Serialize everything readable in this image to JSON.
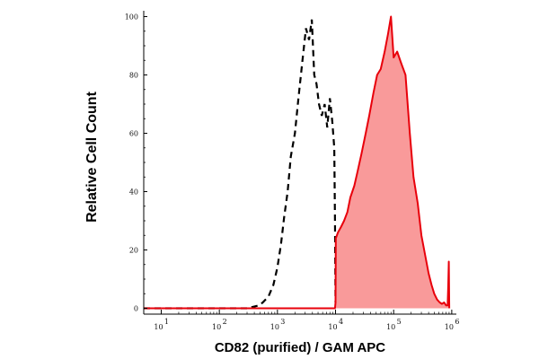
{
  "chart_data": {
    "type": "area",
    "xlabel": "CD82 (purified) / GAM APC",
    "ylabel": "Relative Cell Count",
    "xscale": "log",
    "xlim": [
      5,
      1200000.0
    ],
    "ylim": [
      -2,
      102
    ],
    "grid": false,
    "x_tick_labels": [
      {
        "value": 10,
        "base": "10",
        "exp": "1"
      },
      {
        "value": 100,
        "base": "10",
        "exp": "2"
      },
      {
        "value": 1000,
        "base": "10",
        "exp": "3"
      },
      {
        "value": 10000,
        "base": "10",
        "exp": "4"
      },
      {
        "value": 100000,
        "base": "10",
        "exp": "5"
      },
      {
        "value": 1000000,
        "base": "10",
        "exp": "6"
      }
    ],
    "y_ticks": [
      0,
      20,
      40,
      60,
      80,
      100
    ],
    "y_tick_labels": [
      "0",
      "20",
      "40",
      "60",
      "80",
      "100"
    ],
    "series": [
      {
        "style": "dashed",
        "color": "#000000",
        "x": [
          5,
          300,
          480,
          560,
          700,
          850,
          1000,
          1150,
          1300,
          1500,
          1700,
          2000,
          2300,
          2700,
          3100,
          3500,
          3900,
          4300,
          4700,
          5200,
          5800,
          6500,
          7200,
          8000,
          8800,
          9500,
          9800,
          10000
        ],
        "y": [
          0,
          0,
          1,
          2,
          4,
          8,
          14,
          22,
          31,
          40,
          52,
          60,
          72,
          85,
          96,
          92,
          99,
          80,
          77,
          70,
          66,
          70,
          62,
          72,
          64,
          55,
          30,
          2
        ]
      },
      {
        "style": "filled",
        "color": "#e8000b",
        "fill": "#f99a9a",
        "x": [
          5,
          9800,
          10000,
          10100,
          11000,
          12500,
          14000,
          16000,
          18000,
          21000,
          24000,
          28000,
          33000,
          38000,
          45000,
          52000,
          60000,
          70000,
          80000,
          90000,
          100000,
          115000,
          135000,
          160000,
          190000,
          220000,
          260000,
          300000,
          350000,
          400000,
          450000,
          500000,
          560000,
          620000,
          680000,
          740000,
          800000,
          850000,
          870000,
          890000,
          905000
        ],
        "y": [
          0,
          0,
          2,
          24,
          26,
          28,
          30,
          33,
          38,
          42,
          47,
          53,
          60,
          66,
          74,
          80,
          82,
          88,
          94,
          100,
          86,
          88,
          84,
          80,
          60,
          45,
          36,
          25,
          18,
          12,
          8,
          5,
          3,
          2,
          1.5,
          2,
          1,
          1,
          8,
          16,
          0
        ]
      }
    ]
  }
}
